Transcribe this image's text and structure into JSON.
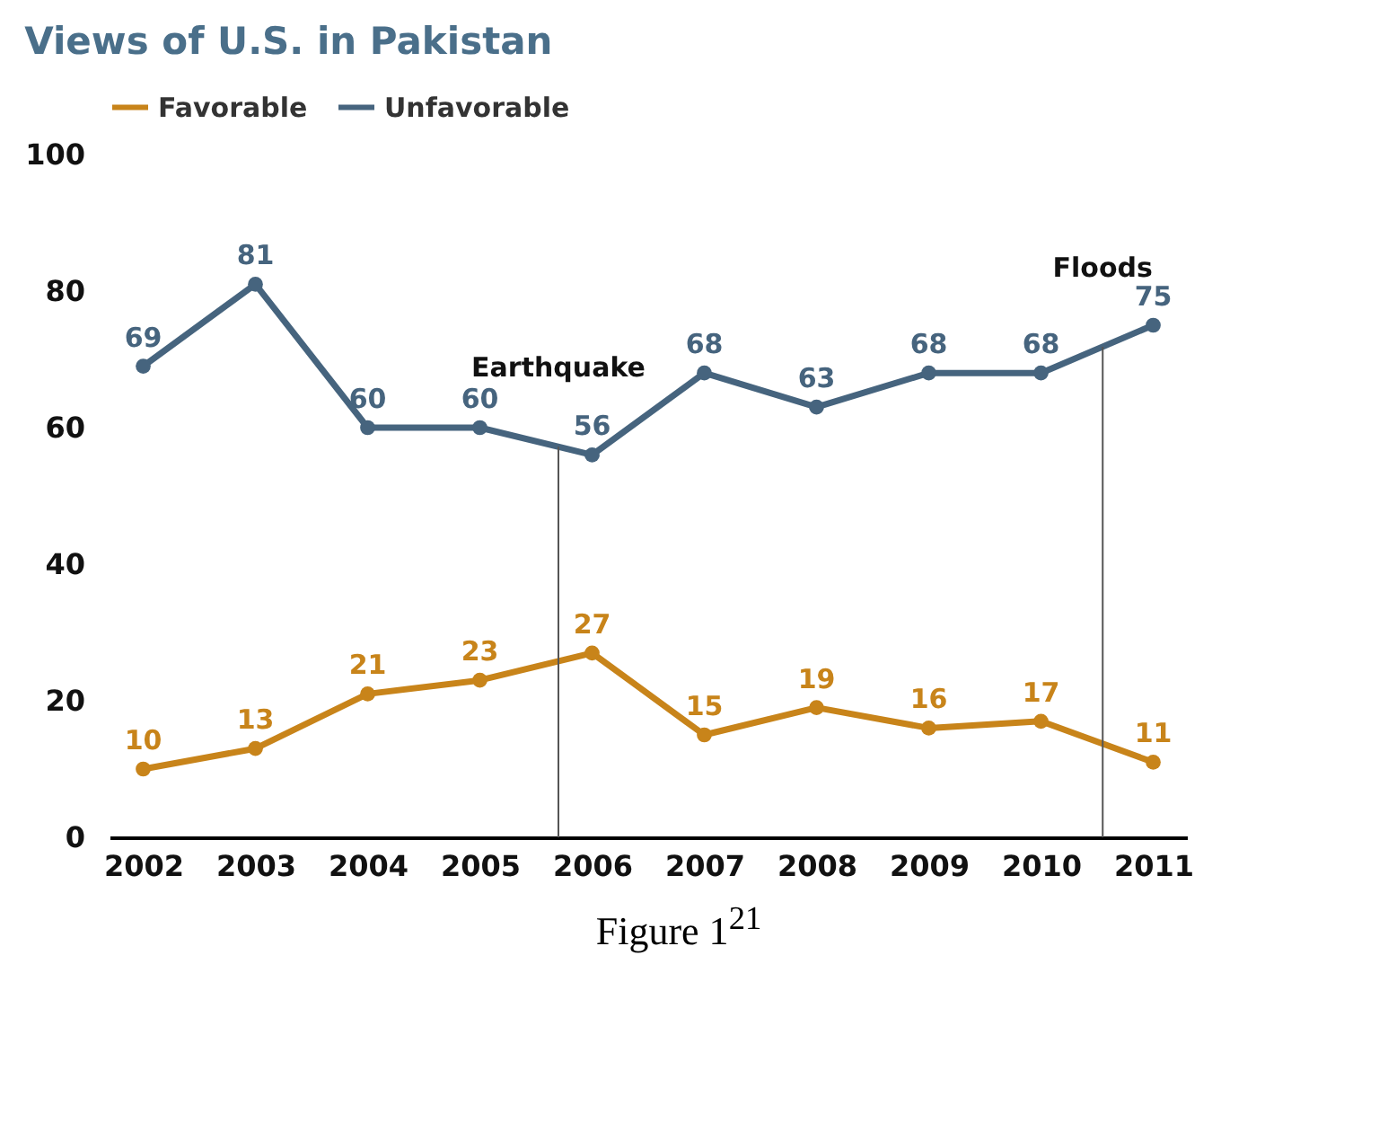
{
  "chart_data": {
    "type": "line",
    "title": "Views of U.S. in Pakistan",
    "x": [
      2002,
      2003,
      2004,
      2005,
      2006,
      2007,
      2008,
      2009,
      2010,
      2011
    ],
    "series": [
      {
        "name": "Favorable",
        "color": "#c8841a",
        "values": [
          10,
          13,
          21,
          23,
          27,
          15,
          19,
          16,
          17,
          11
        ]
      },
      {
        "name": "Unfavorable",
        "color": "#46647e",
        "values": [
          69,
          81,
          60,
          60,
          56,
          68,
          63,
          68,
          68,
          75
        ]
      }
    ],
    "xlim": [
      2001.7,
      2011.3
    ],
    "xticks": [
      2002,
      2003,
      2004,
      2005,
      2006,
      2007,
      2008,
      2009,
      2010,
      2011
    ],
    "ylim": [
      0,
      100
    ],
    "yticks": [
      0,
      20,
      40,
      60,
      80,
      100
    ],
    "ref_lines": [
      {
        "axis": "x",
        "value": 2005.7,
        "label": "Earthquake"
      },
      {
        "axis": "x",
        "value": 2010.55,
        "label": "Floods"
      }
    ],
    "data_labels": true,
    "legend": "top",
    "marker": "circle",
    "line_style": "solid",
    "grid": false,
    "annotations": [
      "Figure 1$^{21}$"
    ]
  }
}
